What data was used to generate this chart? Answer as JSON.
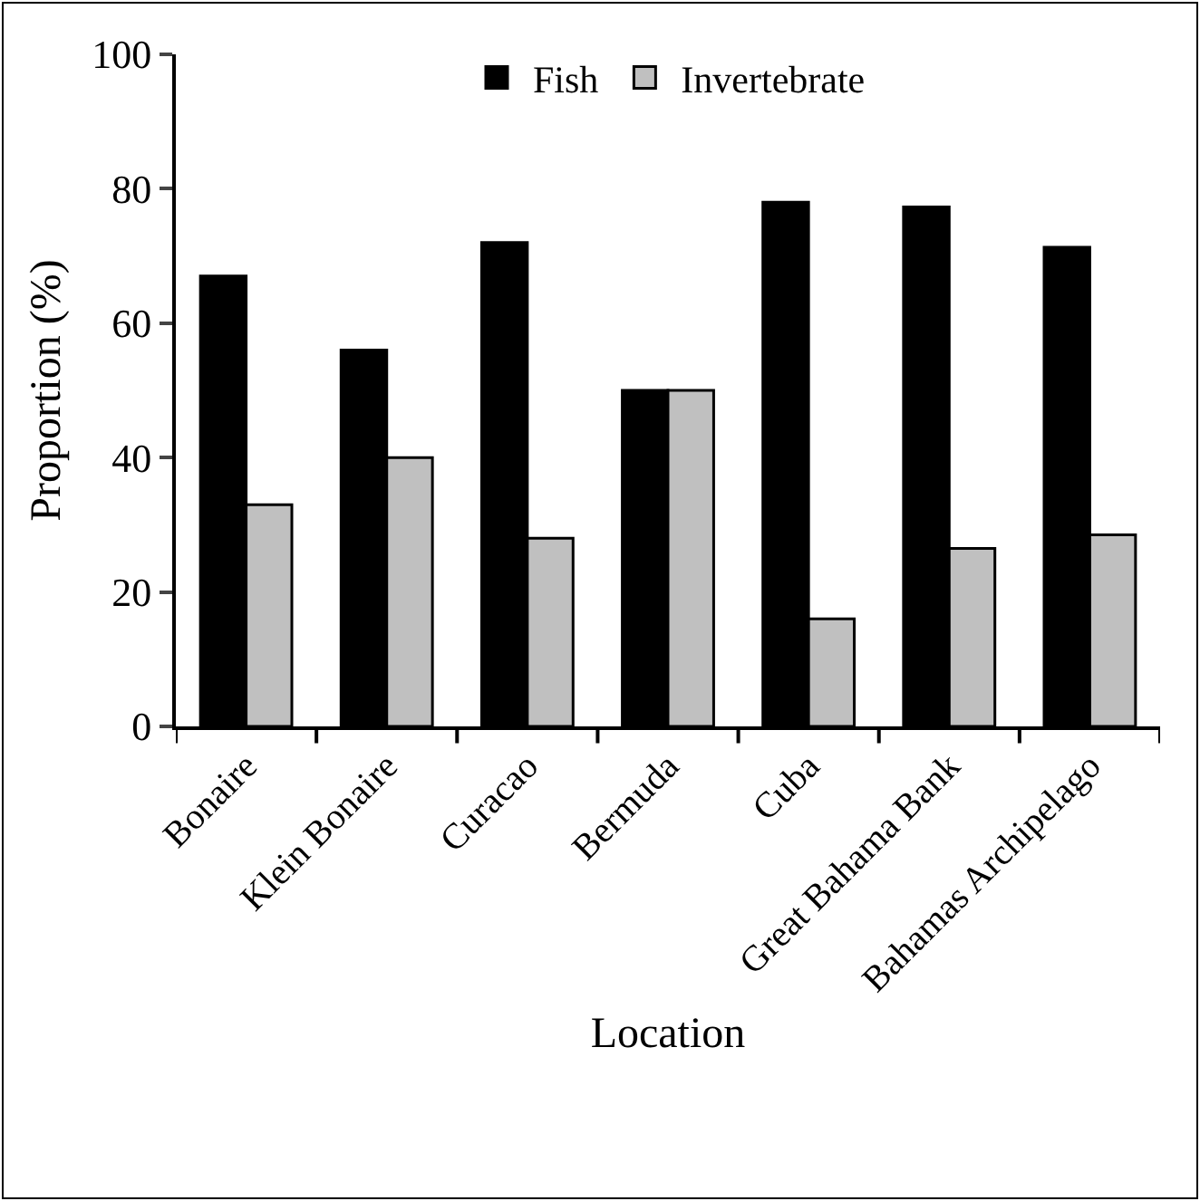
{
  "chart_data": {
    "type": "bar",
    "xlabel": "Location",
    "ylabel": "Proportion (%)",
    "categories": [
      "Bonaire",
      "Klein Bonaire",
      "Curacao",
      "Bermuda",
      "Cuba",
      "Great Bahama Bank",
      "Bahamas Archipelago"
    ],
    "series": [
      {
        "name": "Fish",
        "color": "#000000",
        "values": [
          67,
          56,
          72,
          50,
          78,
          77.3,
          71.3
        ]
      },
      {
        "name": "Invertebrate",
        "color": "#c0c0c0",
        "values": [
          33,
          40,
          28,
          50,
          16,
          26.5,
          28.5
        ]
      }
    ],
    "ylim": [
      0,
      100
    ],
    "yticks": [
      0,
      20,
      40,
      60,
      80,
      100
    ],
    "grid": false,
    "legend": "top"
  }
}
